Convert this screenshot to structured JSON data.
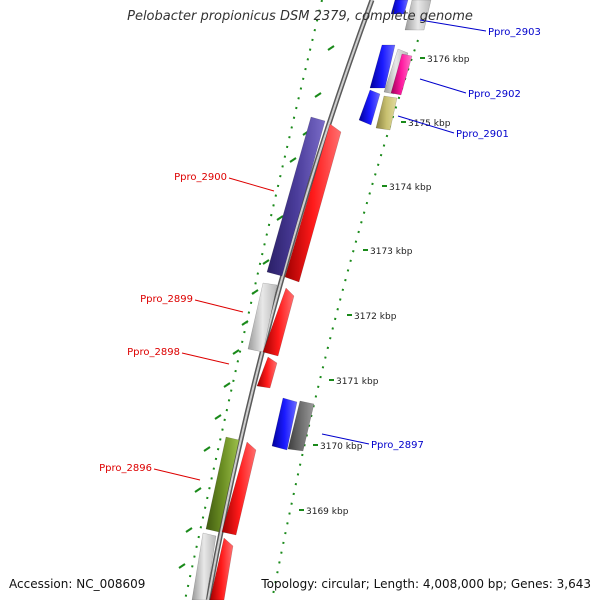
{
  "title": "Pelobacter propionicus DSM 2379, complete genome",
  "accession": "Accession: NC_008609",
  "topology_info": "Topology: circular; Length: 4,008,000 bp; Genes: 3,643",
  "colors": {
    "forward_label": "#0000cc",
    "reverse_label": "#dd0000",
    "backbone": "#8c8c8c",
    "dotted_track": "#1a8a1a",
    "blue": "#1a1aff",
    "red": "#ff1a1a",
    "grey": "#c8c8c8",
    "dark_grey": "#6e6e6e",
    "magenta": "#ff1aa0",
    "khaki": "#c8c070",
    "purple": "#4a3c9a",
    "olive": "#6b8e23"
  },
  "scale_labels": [
    {
      "text": "3176 kbp"
    },
    {
      "text": "3175 kbp"
    },
    {
      "text": "3174 kbp"
    },
    {
      "text": "3173 kbp"
    },
    {
      "text": "3172 kbp"
    },
    {
      "text": "3171 kbp"
    },
    {
      "text": "3170 kbp"
    },
    {
      "text": "3169 kbp"
    }
  ],
  "gene_labels": [
    {
      "text": "Ppro_2903",
      "strand": "forward"
    },
    {
      "text": "Ppro_2902",
      "strand": "forward"
    },
    {
      "text": "Ppro_2901",
      "strand": "forward"
    },
    {
      "text": "Ppro_2900",
      "strand": "reverse"
    },
    {
      "text": "Ppro_2899",
      "strand": "reverse"
    },
    {
      "text": "Ppro_2898",
      "strand": "reverse"
    },
    {
      "text": "Ppro_2897",
      "strand": "forward"
    },
    {
      "text": "Ppro_2896",
      "strand": "reverse"
    }
  ]
}
